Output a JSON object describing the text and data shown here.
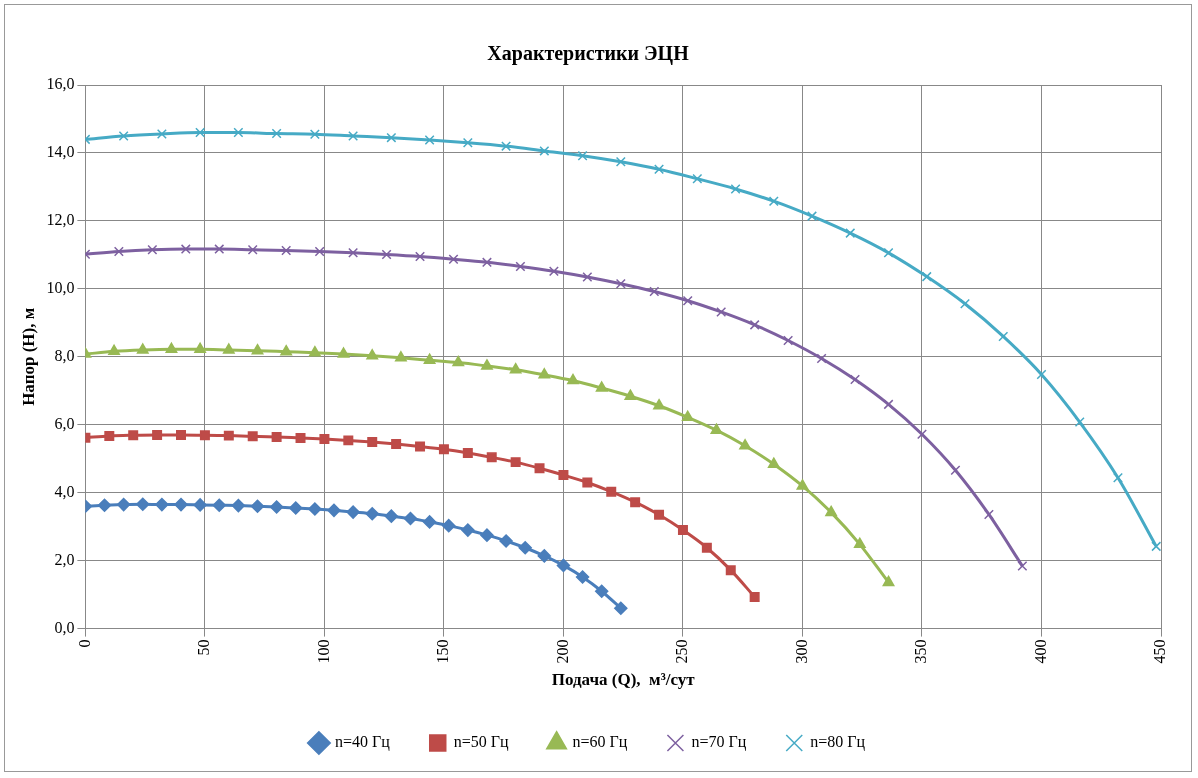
{
  "chart_data": {
    "type": "line",
    "title": "Характеристики ЭЦН",
    "xlabel": "Подача (Q),  м³/сут",
    "ylabel": "Напор (H), м",
    "xlim": [
      0,
      450
    ],
    "xticks": [
      0,
      50,
      100,
      150,
      200,
      250,
      300,
      350,
      400,
      450
    ],
    "ylim": [
      0,
      16
    ],
    "yticks": [
      {
        "value": 0,
        "label": "0,0"
      },
      {
        "value": 2,
        "label": "2,0"
      },
      {
        "value": 4,
        "label": "4,0"
      },
      {
        "value": 6,
        "label": "6,0"
      },
      {
        "value": 8,
        "label": "8,0"
      },
      {
        "value": 10,
        "label": "10,0"
      },
      {
        "value": 12,
        "label": "12,0"
      },
      {
        "value": 14,
        "label": "14,0"
      },
      {
        "value": 16,
        "label": "16,0"
      }
    ],
    "grid": true,
    "legend": "bottom",
    "series": [
      {
        "name": "n=40 Гц",
        "color": "#4a7ebb",
        "marker": "diamond",
        "x": [
          0,
          8,
          16,
          24,
          32,
          40,
          48,
          56,
          64,
          72,
          80,
          88,
          96,
          104,
          112,
          120,
          128,
          136,
          144,
          152,
          160,
          168,
          176,
          184,
          192,
          200,
          208,
          216,
          224
        ],
        "values": [
          3.6,
          3.63,
          3.65,
          3.66,
          3.65,
          3.65,
          3.64,
          3.63,
          3.62,
          3.6,
          3.58,
          3.55,
          3.52,
          3.48,
          3.43,
          3.38,
          3.31,
          3.24,
          3.14,
          3.03,
          2.9,
          2.75,
          2.58,
          2.38,
          2.14,
          1.86,
          1.52,
          1.1,
          0.6
        ]
      },
      {
        "name": "n=50 Гц",
        "color": "#be4b48",
        "marker": "square",
        "x": [
          0,
          10,
          20,
          30,
          40,
          50,
          60,
          70,
          80,
          90,
          100,
          110,
          120,
          130,
          140,
          150,
          160,
          170,
          180,
          190,
          200,
          210,
          220,
          230,
          240,
          250,
          260,
          270,
          280
        ],
        "values": [
          5.62,
          5.67,
          5.69,
          5.7,
          5.7,
          5.69,
          5.68,
          5.66,
          5.64,
          5.61,
          5.58,
          5.54,
          5.49,
          5.43,
          5.36,
          5.28,
          5.17,
          5.04,
          4.9,
          4.72,
          4.52,
          4.3,
          4.03,
          3.72,
          3.35,
          2.9,
          2.38,
          1.72,
          0.93
        ]
      },
      {
        "name": "n=60 Гц",
        "color": "#98b954",
        "marker": "triangle",
        "x": [
          0,
          12,
          24,
          36,
          48,
          60,
          72,
          84,
          96,
          108,
          120,
          132,
          144,
          156,
          168,
          180,
          192,
          204,
          216,
          228,
          240,
          252,
          264,
          276,
          288,
          300,
          312,
          324,
          336
        ],
        "values": [
          8.08,
          8.16,
          8.2,
          8.22,
          8.22,
          8.2,
          8.18,
          8.15,
          8.12,
          8.08,
          8.03,
          7.97,
          7.9,
          7.83,
          7.73,
          7.62,
          7.47,
          7.3,
          7.08,
          6.84,
          6.56,
          6.22,
          5.84,
          5.38,
          4.84,
          4.2,
          3.42,
          2.48,
          1.36
        ]
      },
      {
        "name": "n=70 Гц",
        "color": "#7d60a0",
        "marker": "cross",
        "x": [
          0,
          14,
          28,
          42,
          56,
          70,
          84,
          98,
          112,
          126,
          140,
          154,
          168,
          182,
          196,
          210,
          224,
          238,
          252,
          266,
          280,
          294,
          308,
          322,
          336,
          350,
          364,
          378,
          392
        ],
        "values": [
          11.02,
          11.1,
          11.15,
          11.17,
          11.17,
          11.15,
          11.13,
          11.1,
          11.06,
          11.01,
          10.95,
          10.87,
          10.78,
          10.66,
          10.52,
          10.35,
          10.15,
          9.92,
          9.65,
          9.32,
          8.94,
          8.48,
          7.95,
          7.33,
          6.6,
          5.72,
          4.66,
          3.36,
          1.84
        ]
      },
      {
        "name": "n=80 Гц",
        "color": "#46aac5",
        "marker": "cross",
        "x": [
          0,
          16,
          32,
          48,
          64,
          80,
          96,
          112,
          128,
          144,
          160,
          176,
          192,
          208,
          224,
          240,
          256,
          272,
          288,
          304,
          320,
          336,
          352,
          368,
          384,
          400,
          416,
          432,
          448
        ],
        "values": [
          14.4,
          14.5,
          14.56,
          14.6,
          14.6,
          14.57,
          14.55,
          14.5,
          14.45,
          14.38,
          14.3,
          14.2,
          14.06,
          13.92,
          13.74,
          13.52,
          13.24,
          12.94,
          12.58,
          12.14,
          11.64,
          11.06,
          10.36,
          9.56,
          8.6,
          7.48,
          6.08,
          4.44,
          2.42
        ]
      }
    ]
  }
}
